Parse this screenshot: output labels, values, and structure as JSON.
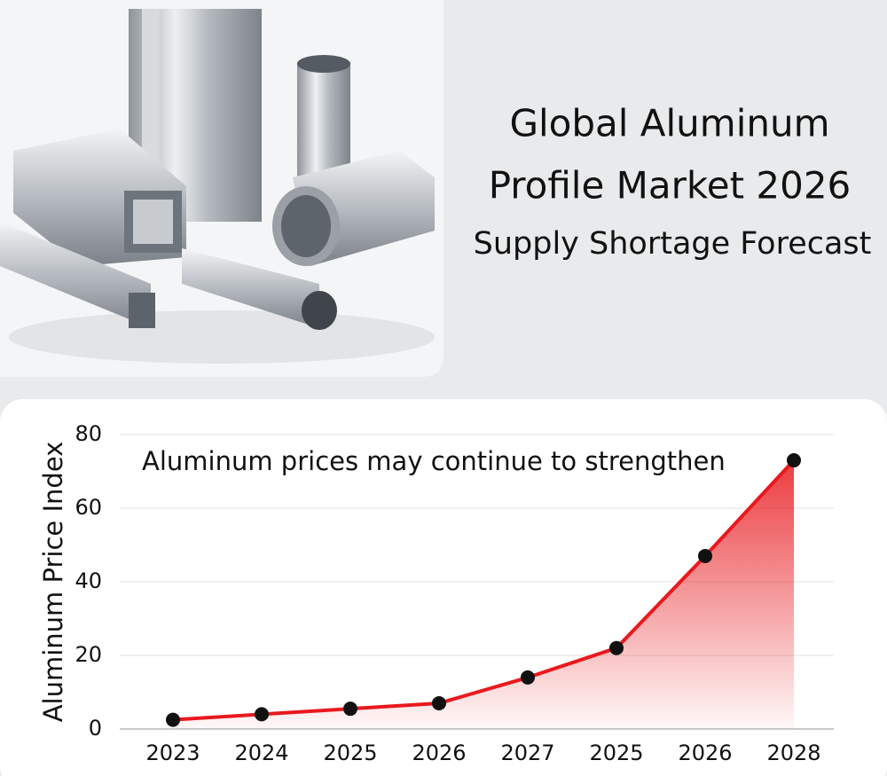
{
  "header": {
    "title": [
      "Global Aluminum",
      "Profile Market 2026"
    ],
    "subtitle": "Supply Shortage Forecast"
  },
  "chart_data": {
    "type": "line",
    "annotation": "Aluminum prices may continue to strengthen",
    "y_label": "Aluminum Price Index",
    "categories": [
      "2023",
      "2024",
      "2025",
      "2026",
      "2027",
      "2025",
      "2026",
      "2028"
    ],
    "values": [
      2.5,
      4,
      5.5,
      7,
      14,
      22,
      47,
      73
    ],
    "color": "#e8191e",
    "marker_color": "#111111",
    "area": true,
    "ylim": [
      0,
      80
    ],
    "yticks": [
      0,
      20,
      40,
      60,
      80
    ],
    "grid": true
  }
}
